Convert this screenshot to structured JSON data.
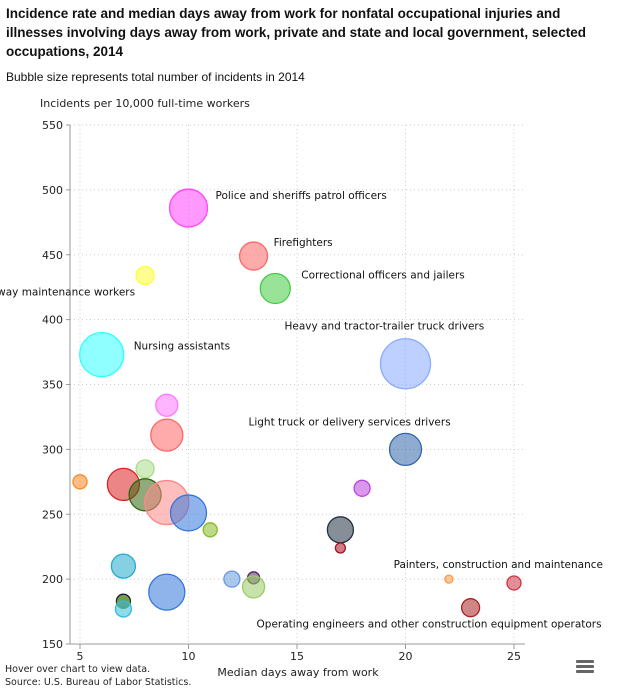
{
  "title": "Incidence rate and median days away from work for nonfatal occupational injuries and illnesses involving days away from work, private and state and local government, selected occupations, 2014",
  "subtitle": "Bubble size represents total number of incidents in 2014",
  "footer": {
    "hover": "Hover over chart to view data.",
    "source": "Source: U.S. Bureau of Labor Statistics."
  },
  "menu_icon": "hamburger-menu-icon",
  "chart_data": {
    "type": "scatter",
    "bubble": true,
    "xlabel": "Median days away from work",
    "ylabel": "Incidents per 10,000 full-time workers",
    "xlim": [
      4.5,
      25.5
    ],
    "ylim": [
      150,
      550
    ],
    "xticks": [
      "5",
      "10",
      "15",
      "20",
      "25"
    ],
    "yticks": [
      "150",
      "200",
      "250",
      "300",
      "350",
      "400",
      "450",
      "500",
      "550"
    ],
    "grid": true,
    "points": [
      {
        "label": "Police and sheriffs patrol officers",
        "x": 10,
        "y": 486,
        "size": 19,
        "color": "#ff44ff"
      },
      {
        "label": "Firefighters",
        "x": 13,
        "y": 449,
        "size": 14,
        "color": "#ff6666"
      },
      {
        "label": "Correctional officers and jailers",
        "x": 14,
        "y": 424,
        "size": 15,
        "color": "#44cc44"
      },
      {
        "label": "Highway maintenance workers",
        "x": 8,
        "y": 434,
        "size": 9,
        "color": "#ffff33"
      },
      {
        "label": "Nursing assistants",
        "x": 6,
        "y": 373,
        "size": 22,
        "color": "#33ffff"
      },
      {
        "label": "Heavy and tractor-trailer truck drivers",
        "x": 20,
        "y": 366,
        "size": 25,
        "color": "#88aaff"
      },
      {
        "label": "Light truck or delivery services drivers",
        "x": 20,
        "y": 300,
        "size": 16,
        "color": "#3366aa"
      },
      {
        "label": "",
        "x": 9,
        "y": 334,
        "size": 11,
        "color": "#ff77ff"
      },
      {
        "label": "",
        "x": 9,
        "y": 311,
        "size": 16,
        "color": "#ff6666"
      },
      {
        "label": "",
        "x": 5,
        "y": 275,
        "size": 7,
        "color": "#ff8822"
      },
      {
        "label": "",
        "x": 8,
        "y": 285,
        "size": 9,
        "color": "#aadd88"
      },
      {
        "label": "",
        "x": 7,
        "y": 273,
        "size": 16,
        "color": "#dd2222"
      },
      {
        "label": "",
        "x": 8,
        "y": 265,
        "size": 16,
        "color": "#336611"
      },
      {
        "label": "",
        "x": 9,
        "y": 259,
        "size": 22,
        "color": "#ff8888"
      },
      {
        "label": "",
        "x": 10,
        "y": 251,
        "size": 18,
        "color": "#3377dd"
      },
      {
        "label": "",
        "x": 11,
        "y": 238,
        "size": 7,
        "color": "#88bb22"
      },
      {
        "label": "",
        "x": 18,
        "y": 270,
        "size": 8,
        "color": "#bb44dd"
      },
      {
        "label": "",
        "x": 17,
        "y": 238,
        "size": 13,
        "color": "#223344"
      },
      {
        "label": "",
        "x": 17,
        "y": 224,
        "size": 5,
        "color": "#aa1122"
      },
      {
        "label": "",
        "x": 7,
        "y": 210,
        "size": 12,
        "color": "#22aacc"
      },
      {
        "label": "",
        "x": 12,
        "y": 200,
        "size": 8,
        "color": "#6699dd"
      },
      {
        "label": "",
        "x": 13,
        "y": 201,
        "size": 6,
        "color": "#552266"
      },
      {
        "label": "",
        "x": 13,
        "y": 194,
        "size": 11,
        "color": "#99cc66"
      },
      {
        "label": "",
        "x": 9,
        "y": 190,
        "size": 18,
        "color": "#3377dd"
      },
      {
        "label": "",
        "x": 7,
        "y": 183,
        "size": 7,
        "color": "#112233"
      },
      {
        "label": "",
        "x": 7,
        "y": 182,
        "size": 6,
        "color": "#77aa22"
      },
      {
        "label": "",
        "x": 7,
        "y": 177,
        "size": 8,
        "color": "#33bbdd"
      },
      {
        "label": "",
        "x": 22,
        "y": 200,
        "size": 4,
        "color": "#ff9944"
      },
      {
        "label": "Painters, construction and maintenance",
        "x": 25,
        "y": 197,
        "size": 7,
        "color": "#cc3344"
      },
      {
        "label": "Operating engineers and other construction equipment operators",
        "x": 23,
        "y": 178,
        "size": 9,
        "color": "#aa2222"
      }
    ]
  }
}
